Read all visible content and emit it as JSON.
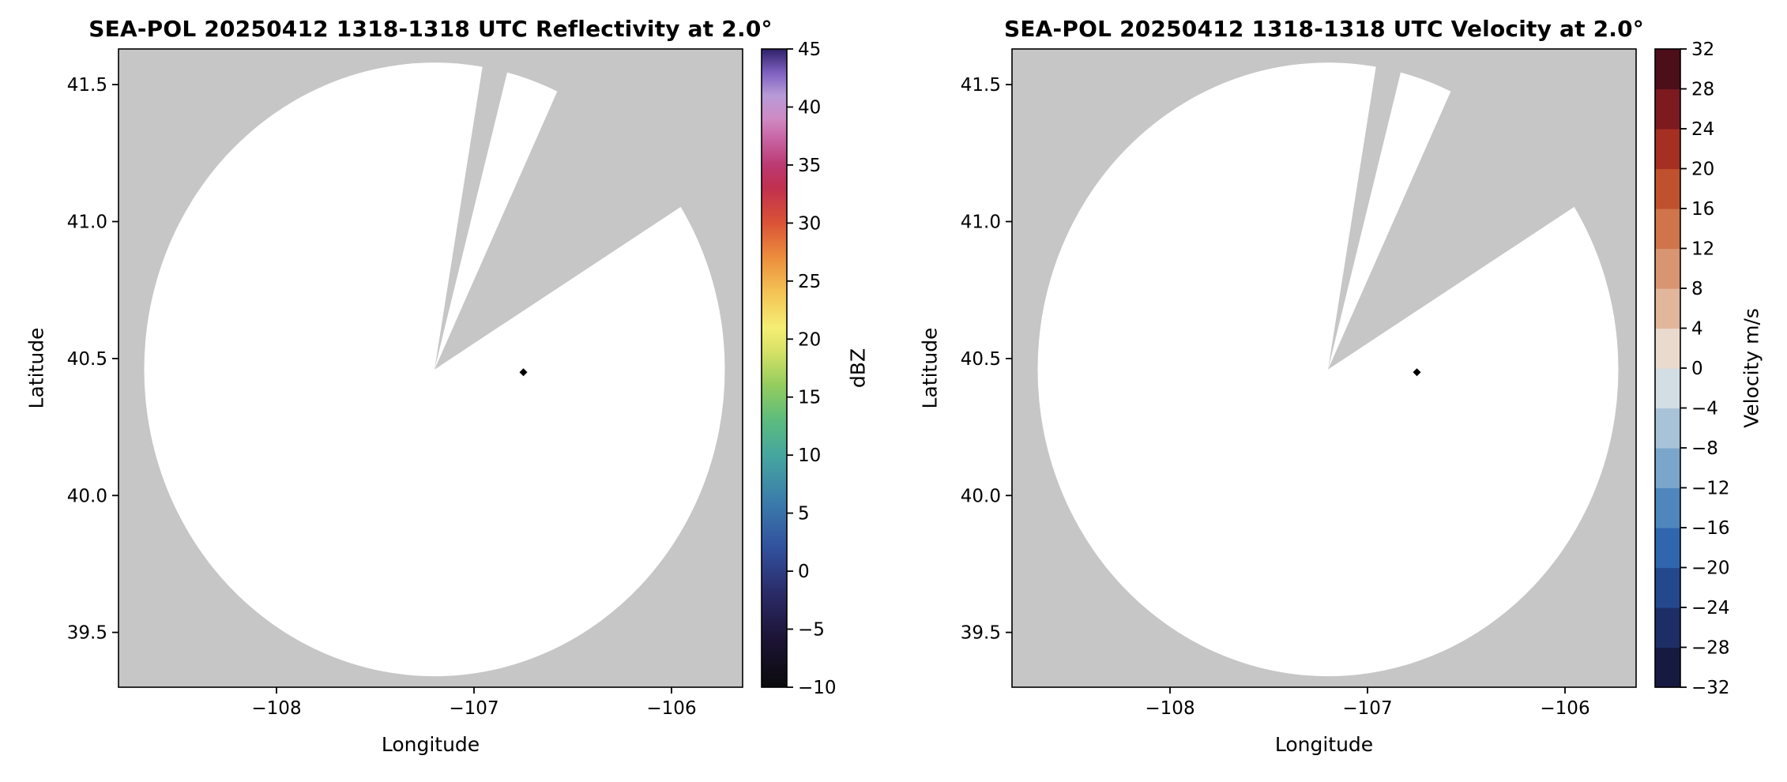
{
  "style": {
    "figure_bg": "#ffffff",
    "map_bg": "#c6c6c6",
    "scan_fill": "#ffffff",
    "frame_color": "#000000",
    "marker_color": "#000000"
  },
  "chart_data": [
    {
      "type": "heatmap",
      "title": "SEA-POL 20250412 1318-1318 UTC Reflectivity at 2.0°",
      "xlabel": "Longitude",
      "ylabel": "Latitude",
      "xlim": [
        -108.8,
        -105.64
      ],
      "ylim": [
        39.3,
        41.63
      ],
      "xtick_vals": [
        -108,
        -107,
        -106
      ],
      "xtick_labels": [
        "−108",
        "−107",
        "−106"
      ],
      "ytick_vals": [
        39.5,
        40.0,
        40.5,
        41.0,
        41.5
      ],
      "ytick_labels": [
        "39.5",
        "40.0",
        "40.5",
        "41.0",
        "41.5"
      ],
      "grid": false,
      "scan": {
        "center_lon": -107.2,
        "center_lat": 40.46,
        "radius_lon": 1.47,
        "radius_lat": 1.12,
        "blocked_sectors_deg": [
          [
            9.5,
            14.5
          ],
          [
            25.0,
            58.0
          ]
        ],
        "marker_lon": -106.75,
        "marker_lat": 40.45,
        "echoes": "none visible (scan area blank)"
      },
      "colorbar": {
        "label": "dBZ",
        "min": -10,
        "max": 45,
        "kind": "gradient",
        "tick_vals": [
          -10,
          -5,
          0,
          5,
          10,
          15,
          20,
          25,
          30,
          35,
          40,
          45
        ],
        "tick_labels": [
          "−10",
          "−5",
          "0",
          "5",
          "10",
          "15",
          "20",
          "25",
          "30",
          "35",
          "40",
          "45"
        ],
        "stops": [
          [
            -10,
            "#0a0a0c"
          ],
          [
            -6,
            "#1c1333"
          ],
          [
            -2,
            "#2a2a66"
          ],
          [
            2,
            "#31519e"
          ],
          [
            6,
            "#3b7cab"
          ],
          [
            10,
            "#45a69f"
          ],
          [
            13,
            "#5cbc7d"
          ],
          [
            16,
            "#93cc5e"
          ],
          [
            19,
            "#d8e266"
          ],
          [
            21,
            "#f5ee74"
          ],
          [
            24,
            "#f4c355"
          ],
          [
            27,
            "#ec8e3d"
          ],
          [
            30,
            "#da5336"
          ],
          [
            33,
            "#c1304e"
          ],
          [
            35,
            "#bb3a72"
          ],
          [
            37,
            "#c75f9e"
          ],
          [
            39,
            "#cf8ac4"
          ],
          [
            41,
            "#b79bd7"
          ],
          [
            43,
            "#7d5fc0"
          ],
          [
            45,
            "#2f2168"
          ]
        ]
      }
    },
    {
      "type": "heatmap",
      "title": "SEA-POL 20250412 1318-1318 UTC Velocity at 2.0°",
      "xlabel": "Longitude",
      "ylabel": "Latitude",
      "xlim": [
        -108.8,
        -105.64
      ],
      "ylim": [
        39.3,
        41.63
      ],
      "xtick_vals": [
        -108,
        -107,
        -106
      ],
      "xtick_labels": [
        "−108",
        "−107",
        "−106"
      ],
      "ytick_vals": [
        39.5,
        40.0,
        40.5,
        41.0,
        41.5
      ],
      "ytick_labels": [
        "39.5",
        "40.0",
        "40.5",
        "41.0",
        "41.5"
      ],
      "grid": false,
      "scan": {
        "center_lon": -107.2,
        "center_lat": 40.46,
        "radius_lon": 1.47,
        "radius_lat": 1.12,
        "blocked_sectors_deg": [
          [
            9.5,
            14.5
          ],
          [
            25.0,
            58.0
          ]
        ],
        "marker_lon": -106.75,
        "marker_lat": 40.45,
        "echoes": "none visible (scan area blank)"
      },
      "colorbar": {
        "label": "Velocity m/s",
        "min": -32,
        "max": 32,
        "kind": "discrete",
        "tick_vals": [
          -32,
          -28,
          -24,
          -20,
          -16,
          -12,
          -8,
          -4,
          0,
          4,
          8,
          12,
          16,
          20,
          24,
          28,
          32
        ],
        "tick_labels": [
          "−32",
          "−28",
          "−24",
          "−20",
          "−16",
          "−12",
          "−8",
          "−4",
          "0",
          "4",
          "8",
          "12",
          "16",
          "20",
          "24",
          "28",
          "32"
        ],
        "colors_bottom_to_top": [
          "#161a40",
          "#1d2e66",
          "#24488e",
          "#2f66ae",
          "#4e86bd",
          "#7ba6cb",
          "#a8c3d8",
          "#d3dde4",
          "#ead9cd",
          "#e2b69a",
          "#d99571",
          "#cf744b",
          "#c0512e",
          "#a52f21",
          "#7c1a20",
          "#4c0e18"
        ]
      }
    }
  ]
}
